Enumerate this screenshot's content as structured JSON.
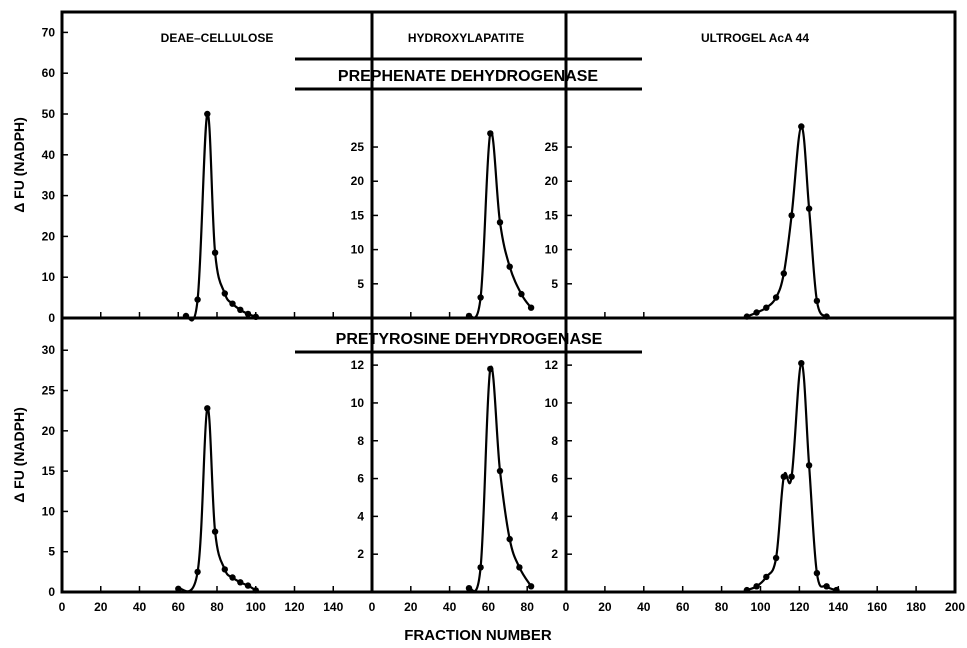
{
  "figure": {
    "column_titles": [
      "DEAE–CELLULOSE",
      "HYDROXYLAPATITE",
      "ULTROGEL  AcA 44"
    ],
    "enzyme_titles": [
      "PREPHENATE DEHYDROGENASE",
      "PRETYROSINE DEHYDROGENASE"
    ],
    "ylabel": "Δ FU (NADPH)",
    "xlabel": "FRACTION NUMBER"
  },
  "chart_data": [
    {
      "type": "line",
      "title": "DEAE–CELLULOSE",
      "enzyme": "PREPHENATE DEHYDROGENASE",
      "ylabel": "Δ FU (NADPH)",
      "xlabel": "FRACTION NUMBER",
      "xlim": [
        0,
        160
      ],
      "ylim": [
        0,
        75
      ],
      "x_ticks": [
        0,
        20,
        40,
        60,
        80,
        100,
        120,
        140
      ],
      "y_ticks": [
        0,
        10,
        20,
        30,
        40,
        50,
        60,
        70
      ],
      "x": [
        64,
        70,
        75,
        79,
        84,
        88,
        92,
        96,
        100
      ],
      "y": [
        0.5,
        4.5,
        50,
        16,
        6,
        3.5,
        2,
        1,
        0.3
      ]
    },
    {
      "type": "line",
      "title": "HYDROXYLAPATITE",
      "enzyme": "PREPHENATE DEHYDROGENASE",
      "ylabel": "Δ FU (NADPH)",
      "xlabel": "FRACTION NUMBER",
      "xlim": [
        0,
        100
      ],
      "ylim": [
        0,
        31
      ],
      "x_ticks": [
        0,
        20,
        40
      ],
      "y_ticks": [
        5,
        10,
        15,
        20,
        25
      ],
      "x": [
        50,
        56,
        61,
        66,
        71,
        77,
        82
      ],
      "y": [
        0.3,
        3,
        27,
        14,
        7.5,
        3.5,
        1.5
      ]
    },
    {
      "type": "line",
      "title": "ULTROGEL  AcA 44",
      "enzyme": "PREPHENATE DEHYDROGENASE",
      "ylabel": "Δ FU (NADPH)",
      "xlabel": "FRACTION NUMBER",
      "xlim": [
        0,
        200
      ],
      "ylim": [
        0,
        31
      ],
      "x_ticks": [
        0,
        20,
        40
      ],
      "y_ticks": [
        5,
        10,
        15,
        20,
        25
      ],
      "x": [
        93,
        98,
        103,
        108,
        112,
        116,
        121,
        125,
        129,
        134
      ],
      "y": [
        0.2,
        0.8,
        1.5,
        3,
        6.5,
        15,
        28,
        16,
        2.5,
        0.2
      ]
    },
    {
      "type": "line",
      "title": "DEAE–CELLULOSE",
      "enzyme": "PRETYROSINE DEHYDROGENASE",
      "ylabel": "Δ FU (NADPH)",
      "xlabel": "FRACTION NUMBER",
      "xlim": [
        0,
        160
      ],
      "ylim": [
        0,
        34
      ],
      "x_ticks": [
        0,
        20,
        40,
        60,
        80,
        100,
        120,
        140
      ],
      "y_ticks": [
        0,
        5,
        10,
        15,
        20,
        25,
        30
      ],
      "x": [
        60,
        70,
        75,
        79,
        84,
        88,
        92,
        96,
        100
      ],
      "y": [
        0.4,
        2.5,
        22.8,
        7.5,
        2.8,
        1.8,
        1.2,
        0.8,
        0.2
      ]
    },
    {
      "type": "line",
      "title": "HYDROXYLAPATITE",
      "enzyme": "PRETYROSINE DEHYDROGENASE",
      "ylabel": "Δ FU (NADPH)",
      "xlabel": "FRACTION NUMBER",
      "xlim": [
        0,
        100
      ],
      "ylim": [
        0,
        12.8
      ],
      "x_ticks": [
        0,
        20,
        40,
        60,
        80
      ],
      "y_ticks": [
        2,
        4,
        6,
        8,
        10,
        12
      ],
      "x": [
        50,
        56,
        61,
        66,
        71,
        76,
        82
      ],
      "y": [
        0.2,
        1.3,
        11.8,
        6.4,
        2.8,
        1.3,
        0.3
      ]
    },
    {
      "type": "line",
      "title": "ULTROGEL  AcA 44",
      "enzyme": "PRETYROSINE DEHYDROGENASE",
      "ylabel": "Δ FU (NADPH)",
      "xlabel": "FRACTION NUMBER",
      "xlim": [
        0,
        200
      ],
      "ylim": [
        0,
        12.8
      ],
      "x_ticks": [
        0,
        20,
        40,
        60,
        80,
        100,
        120,
        140,
        160,
        180,
        200
      ],
      "y_ticks": [
        2,
        4,
        6,
        8,
        10,
        12
      ],
      "x": [
        93,
        98,
        103,
        108,
        112,
        116,
        121,
        125,
        129,
        134,
        139
      ],
      "y": [
        0.1,
        0.3,
        0.8,
        1.8,
        6.1,
        6.1,
        12.1,
        6.7,
        1.0,
        0.3,
        0.1
      ]
    }
  ]
}
